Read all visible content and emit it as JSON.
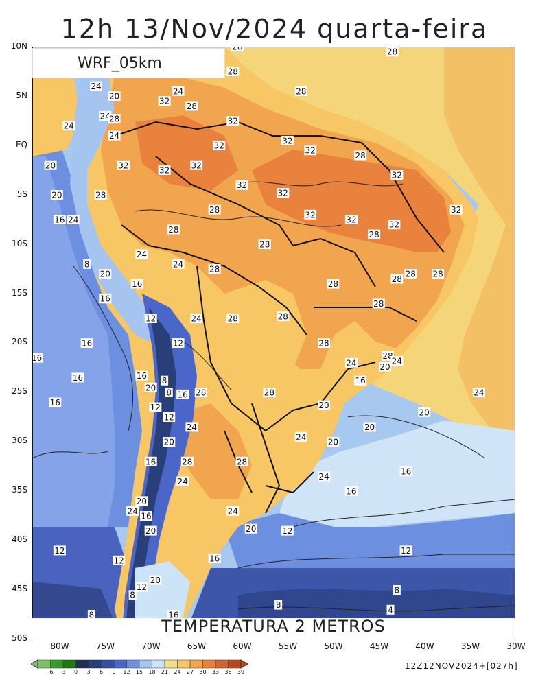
{
  "header": {
    "title": "12h 13/Nov/2024 quarta-feira"
  },
  "model": {
    "name": "WRF_05km"
  },
  "caption": {
    "text": "TEMPERATURA 2 METROS"
  },
  "run_info": "12Z12NOV2024+[027h]",
  "axes": {
    "lat_labels": [
      "10N",
      "5N",
      "EQ",
      "5S",
      "10S",
      "15S",
      "20S",
      "25S",
      "30S",
      "35S",
      "40S",
      "45S",
      "50S"
    ],
    "lon_labels": [
      "80W",
      "75W",
      "70W",
      "65W",
      "60W",
      "55W",
      "50W",
      "45W",
      "40W",
      "35W",
      "30W"
    ]
  },
  "colorbar": {
    "labels": [
      "-6",
      "-3",
      "0",
      "3",
      "6",
      "9",
      "12",
      "15",
      "18",
      "21",
      "24",
      "27",
      "30",
      "33",
      "36",
      "39"
    ],
    "colors": [
      "#7ec06a",
      "#3a9a2c",
      "#1b7a10",
      "#1f2f58",
      "#283f7a",
      "#364fa0",
      "#4a66c8",
      "#6f8fe0",
      "#a5c4f0",
      "#cde3f7",
      "#f5e08a",
      "#f6c764",
      "#f2a54f",
      "#e8823c",
      "#d2632a",
      "#b9481f"
    ]
  },
  "contour_labels": [
    {
      "text": "28",
      "lon": -60.5,
      "lat": 10
    },
    {
      "text": "28",
      "lon": -43.5,
      "lat": 9.5
    },
    {
      "text": "28",
      "lon": -61,
      "lat": 7.5
    },
    {
      "text": "24",
      "lon": -76,
      "lat": 6
    },
    {
      "text": "20",
      "lon": -74,
      "lat": 5
    },
    {
      "text": "32",
      "lon": -68.5,
      "lat": 4.5
    },
    {
      "text": "24",
      "lon": -67,
      "lat": 5.5
    },
    {
      "text": "28",
      "lon": -53.5,
      "lat": 5.5
    },
    {
      "text": "28",
      "lon": -65.5,
      "lat": 4
    },
    {
      "text": "24",
      "lon": -75,
      "lat": 3
    },
    {
      "text": "28",
      "lon": -74,
      "lat": 2.7
    },
    {
      "text": "24",
      "lon": -79,
      "lat": 2
    },
    {
      "text": "24",
      "lon": -74,
      "lat": 1
    },
    {
      "text": "32",
      "lon": -61,
      "lat": 2.5
    },
    {
      "text": "32",
      "lon": -55,
      "lat": 0.5
    },
    {
      "text": "32",
      "lon": -62.5,
      "lat": 0
    },
    {
      "text": "32",
      "lon": -52.5,
      "lat": -0.5
    },
    {
      "text": "28",
      "lon": -47,
      "lat": -1
    },
    {
      "text": "20",
      "lon": -81,
      "lat": -2
    },
    {
      "text": "32",
      "lon": -73,
      "lat": -2
    },
    {
      "text": "32",
      "lon": -68.5,
      "lat": -2.5
    },
    {
      "text": "32",
      "lon": -65,
      "lat": -2
    },
    {
      "text": "32",
      "lon": -43,
      "lat": -3
    },
    {
      "text": "32",
      "lon": -60,
      "lat": -4
    },
    {
      "text": "32",
      "lon": -55.5,
      "lat": -4.8
    },
    {
      "text": "20",
      "lon": -80.3,
      "lat": -5
    },
    {
      "text": "28",
      "lon": -75.5,
      "lat": -5
    },
    {
      "text": "32",
      "lon": -36.5,
      "lat": -6.5
    },
    {
      "text": "28",
      "lon": -63,
      "lat": -6.5
    },
    {
      "text": "32",
      "lon": -52.5,
      "lat": -7
    },
    {
      "text": "32",
      "lon": -48,
      "lat": -7.5
    },
    {
      "text": "16",
      "lon": -80,
      "lat": -7.5
    },
    {
      "text": "24",
      "lon": -78.5,
      "lat": -7.5
    },
    {
      "text": "32",
      "lon": -43.3,
      "lat": -8
    },
    {
      "text": "28",
      "lon": -67.5,
      "lat": -8.5
    },
    {
      "text": "28",
      "lon": -45.5,
      "lat": -9
    },
    {
      "text": "28",
      "lon": -57.5,
      "lat": -10
    },
    {
      "text": "24",
      "lon": -71,
      "lat": -11
    },
    {
      "text": "8",
      "lon": -77,
      "lat": -12
    },
    {
      "text": "24",
      "lon": -67,
      "lat": -12
    },
    {
      "text": "28",
      "lon": -63,
      "lat": -12.5
    },
    {
      "text": "20",
      "lon": -75,
      "lat": -13
    },
    {
      "text": "28",
      "lon": -41.5,
      "lat": -13
    },
    {
      "text": "28",
      "lon": -43,
      "lat": -13.5
    },
    {
      "text": "28",
      "lon": -38.5,
      "lat": -13
    },
    {
      "text": "16",
      "lon": -71.5,
      "lat": -14
    },
    {
      "text": "28",
      "lon": -50,
      "lat": -14
    },
    {
      "text": "16",
      "lon": -75,
      "lat": -15.5
    },
    {
      "text": "28",
      "lon": -45,
      "lat": -16
    },
    {
      "text": "24",
      "lon": -65,
      "lat": -17.5
    },
    {
      "text": "28",
      "lon": -61,
      "lat": -17.5
    },
    {
      "text": "12",
      "lon": -70,
      "lat": -17.5
    },
    {
      "text": "28",
      "lon": -55.5,
      "lat": -17.3
    },
    {
      "text": "16",
      "lon": -77,
      "lat": -20
    },
    {
      "text": "12",
      "lon": -67,
      "lat": -20
    },
    {
      "text": "28",
      "lon": -51,
      "lat": -20
    },
    {
      "text": "16",
      "lon": -82.5,
      "lat": -21.5
    },
    {
      "text": "28",
      "lon": -44,
      "lat": -21.3
    },
    {
      "text": "24",
      "lon": -48,
      "lat": -22
    },
    {
      "text": "24",
      "lon": -43,
      "lat": -21.8
    },
    {
      "text": "20",
      "lon": -44.3,
      "lat": -22.4
    },
    {
      "text": "16",
      "lon": -78,
      "lat": -23.5
    },
    {
      "text": "16",
      "lon": -71,
      "lat": -23.3
    },
    {
      "text": "8",
      "lon": -68.5,
      "lat": -23.8
    },
    {
      "text": "16",
      "lon": -47,
      "lat": -23.8
    },
    {
      "text": "20",
      "lon": -70,
      "lat": -24.5
    },
    {
      "text": "8",
      "lon": -68,
      "lat": -25
    },
    {
      "text": "16",
      "lon": -66.5,
      "lat": -25.2
    },
    {
      "text": "28",
      "lon": -64.5,
      "lat": -25
    },
    {
      "text": "28",
      "lon": -57,
      "lat": -25
    },
    {
      "text": "24",
      "lon": -34,
      "lat": -25
    },
    {
      "text": "16",
      "lon": -80.5,
      "lat": -26
    },
    {
      "text": "12",
      "lon": -69.5,
      "lat": -26.5
    },
    {
      "text": "20",
      "lon": -51,
      "lat": -26.3
    },
    {
      "text": "20",
      "lon": -40,
      "lat": -27
    },
    {
      "text": "12",
      "lon": -68,
      "lat": -27.5
    },
    {
      "text": "24",
      "lon": -65.5,
      "lat": -28.5
    },
    {
      "text": "20",
      "lon": -46,
      "lat": -28.5
    },
    {
      "text": "24",
      "lon": -53.5,
      "lat": -29.5
    },
    {
      "text": "20",
      "lon": -68,
      "lat": -30
    },
    {
      "text": "20",
      "lon": -50,
      "lat": -30
    },
    {
      "text": "16",
      "lon": -70,
      "lat": -32
    },
    {
      "text": "28",
      "lon": -66,
      "lat": -32
    },
    {
      "text": "28",
      "lon": -60,
      "lat": -32
    },
    {
      "text": "16",
      "lon": -42,
      "lat": -33
    },
    {
      "text": "24",
      "lon": -66.5,
      "lat": -34
    },
    {
      "text": "24",
      "lon": -51,
      "lat": -33.5
    },
    {
      "text": "16",
      "lon": -48,
      "lat": -35
    },
    {
      "text": "20",
      "lon": -71,
      "lat": -36
    },
    {
      "text": "24",
      "lon": -72,
      "lat": -37
    },
    {
      "text": "16",
      "lon": -70.5,
      "lat": -37.5
    },
    {
      "text": "24",
      "lon": -61,
      "lat": -37
    },
    {
      "text": "20",
      "lon": -70,
      "lat": -39
    },
    {
      "text": "20",
      "lon": -59,
      "lat": -38.8
    },
    {
      "text": "12",
      "lon": -55,
      "lat": -39
    },
    {
      "text": "12",
      "lon": -80,
      "lat": -41
    },
    {
      "text": "12",
      "lon": -42,
      "lat": -41
    },
    {
      "text": "12",
      "lon": -73.5,
      "lat": -42
    },
    {
      "text": "16",
      "lon": -63,
      "lat": -41.8
    },
    {
      "text": "20",
      "lon": -69.5,
      "lat": -44
    },
    {
      "text": "12",
      "lon": -71,
      "lat": -44.7
    },
    {
      "text": "8",
      "lon": -72,
      "lat": -45.5
    },
    {
      "text": "8",
      "lon": -43,
      "lat": -45
    },
    {
      "text": "8",
      "lon": -56,
      "lat": -46.5
    },
    {
      "text": "4",
      "lon": -43.7,
      "lat": -47
    },
    {
      "text": "8",
      "lon": -76.5,
      "lat": -47.5
    },
    {
      "text": "16",
      "lon": -67.5,
      "lat": -47.5
    }
  ]
}
